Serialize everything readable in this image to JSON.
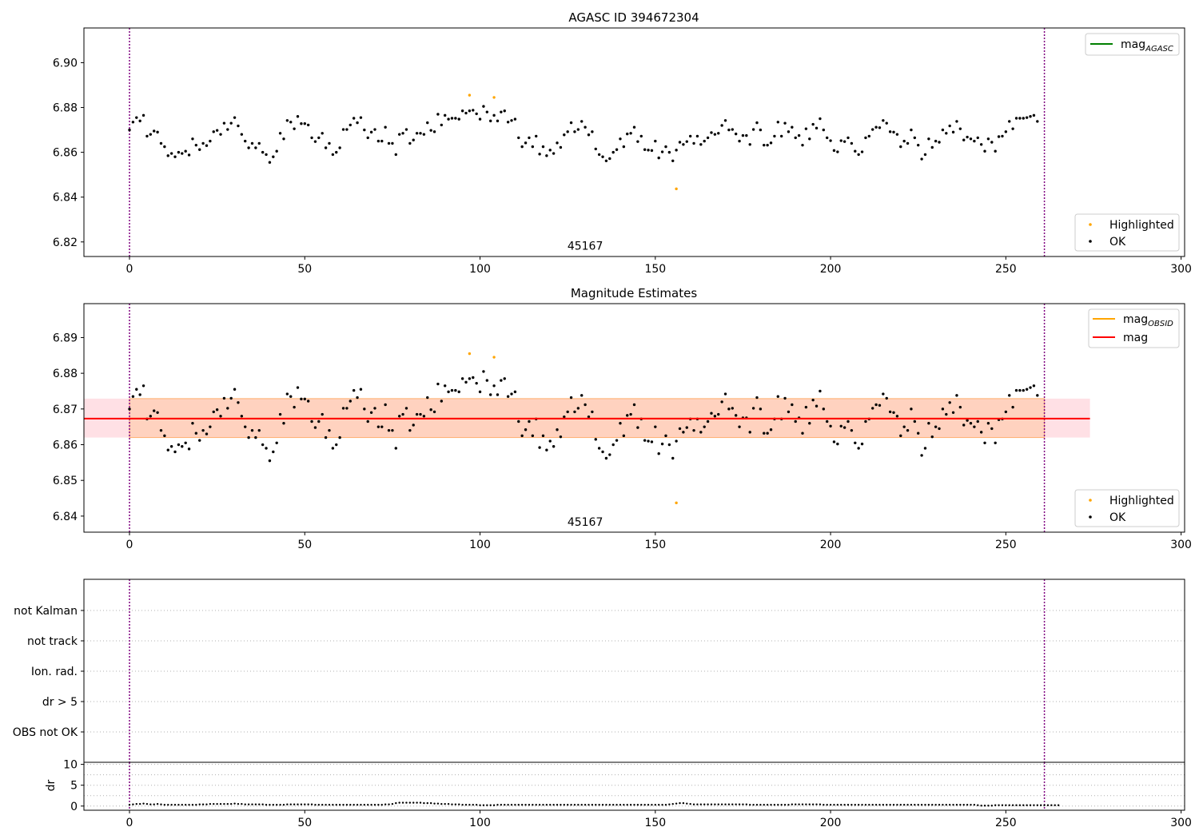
{
  "chart_data": [
    {
      "type": "scatter",
      "title": "AGASC ID 394672304",
      "xlim": [
        -13,
        301
      ],
      "ylim": [
        6.8135,
        6.9155
      ],
      "xticks": [
        0,
        50,
        100,
        150,
        200,
        250,
        300
      ],
      "yticks": [
        6.82,
        6.84,
        6.86,
        6.88,
        6.9
      ],
      "ytick_labels": [
        "6.82",
        "6.84",
        "6.86",
        "6.88",
        "6.90"
      ],
      "vlines": [
        0,
        261
      ],
      "annotation": {
        "text": "45167",
        "x": 130,
        "y": 6.8165
      },
      "legend_top": [
        {
          "label": "mag",
          "sub": "AGASC",
          "color": "#008000"
        }
      ],
      "legend_bottom": [
        {
          "label": "Highlighted",
          "color": "#FFA500"
        },
        {
          "label": "OK",
          "color": "#000000"
        }
      ],
      "series": [
        {
          "name": "OK",
          "color": "#000000",
          "source": "ok"
        },
        {
          "name": "Highlighted",
          "color": "#FFA500",
          "source": "highlighted"
        }
      ]
    },
    {
      "type": "scatter",
      "title": "Magnitude Estimates",
      "xlim": [
        -13,
        301
      ],
      "ylim": [
        6.8355,
        6.8995
      ],
      "xticks": [
        0,
        50,
        100,
        150,
        200,
        250,
        300
      ],
      "yticks": [
        6.84,
        6.85,
        6.86,
        6.87,
        6.88,
        6.89
      ],
      "ytick_labels": [
        "6.84",
        "6.85",
        "6.86",
        "6.87",
        "6.88",
        "6.89"
      ],
      "vlines": [
        0,
        261
      ],
      "annotation": {
        "text": "45167",
        "x": 130,
        "y": 6.8373
      },
      "mag_line": {
        "value": 6.8673,
        "band": [
          6.862,
          6.8729
        ],
        "x_range": [
          -13,
          274
        ]
      },
      "obsid_band": {
        "band": [
          6.862,
          6.8729
        ],
        "x_range": [
          0,
          261
        ]
      },
      "legend_top": [
        {
          "label": "mag",
          "sub": "OBSID",
          "color": "#FFA500"
        },
        {
          "label": "mag",
          "sub": "",
          "color": "#FF0000"
        }
      ],
      "legend_bottom": [
        {
          "label": "Highlighted",
          "color": "#FFA500"
        },
        {
          "label": "OK",
          "color": "#000000"
        }
      ],
      "series": [
        {
          "name": "OK",
          "color": "#000000",
          "source": "ok"
        },
        {
          "name": "Highlighted",
          "color": "#FFA500",
          "source": "highlighted"
        }
      ]
    },
    {
      "type": "scatter",
      "xlim": [
        -13,
        301
      ],
      "categories": [
        "not Kalman",
        "not track",
        "Ion. rad.",
        "dr > 5",
        "OBS not OK"
      ],
      "vlines": [
        0,
        261
      ]
    },
    {
      "type": "scatter",
      "xlim": [
        -13,
        301
      ],
      "ylim": [
        -1,
        10.5
      ],
      "xticks": [
        0,
        50,
        100,
        150,
        200,
        250,
        300
      ],
      "yticks": [
        0,
        5,
        10
      ],
      "ytick_labels": [
        "0",
        "5",
        "10"
      ],
      "ylabel": "dr",
      "vlines": [
        0,
        261
      ],
      "series": [
        {
          "name": "dr",
          "color": "#000000",
          "source": "dr"
        }
      ]
    }
  ],
  "mag_ok": [
    6.87,
    6.8735,
    6.8755,
    6.874,
    6.8765,
    6.8672,
    6.868,
    6.8695,
    6.869,
    6.864,
    6.8625,
    6.8585,
    6.8595,
    6.858,
    6.86,
    6.8595,
    6.8605,
    6.8588,
    6.866,
    6.8632,
    6.8612,
    6.864,
    6.863,
    6.865,
    6.8692,
    6.8698,
    6.868,
    6.873,
    6.8702,
    6.873,
    6.8755,
    6.8718,
    6.868,
    6.865,
    6.862,
    6.864,
    6.862,
    6.864,
    6.86,
    6.859,
    6.8555,
    6.858,
    6.8605,
    6.8685,
    6.866,
    6.8742,
    6.8735,
    6.8705,
    6.876,
    6.8728,
    6.8728,
    6.8722,
    6.8665,
    6.8648,
    6.8665,
    6.8685,
    6.862,
    6.864,
    6.859,
    6.86,
    6.862,
    6.8702,
    6.8702,
    6.8722,
    6.8752,
    6.8732,
    6.8755,
    6.87,
    6.8665,
    6.869,
    6.8702,
    6.865,
    6.865,
    6.8712,
    6.864,
    6.864,
    6.859,
    6.868,
    6.8685,
    6.8702,
    6.864,
    6.8655,
    6.8685,
    6.8685,
    6.868,
    6.8732,
    6.8698,
    6.8692,
    6.877,
    6.8722,
    6.8765,
    6.8748,
    6.8752,
    6.8752,
    6.8748,
    6.8785,
    6.8775,
    6.8785,
    6.8788,
    6.8772,
    6.8748,
    6.8805,
    6.878,
    6.874,
    6.8765,
    6.874,
    6.878,
    6.8785,
    6.8735,
    6.8742,
    6.8748,
    6.8665,
    6.8625,
    6.8642,
    6.8665,
    6.8625,
    6.8672,
    6.8592,
    6.8625,
    6.8585,
    6.861,
    6.8595,
    6.8642,
    6.8622,
    6.8678,
    6.8692,
    6.8732,
    6.8692,
    6.8702,
    6.8738,
    6.8712,
    6.8678,
    6.8692,
    6.8615,
    6.859,
    6.858,
    6.8562,
    6.8572,
    6.86,
    6.8612,
    6.866,
    6.8625,
    6.8682,
    6.8685,
    6.8712,
    6.8648,
    6.8672,
    6.8612,
    6.861,
    6.8608,
    6.865,
    6.8575,
    6.8602,
    6.8625,
    6.86,
    6.8562,
    6.861,
    6.8645,
    6.8635,
    6.8648,
    6.8672,
    6.864,
    6.8672,
    6.8635,
    6.865,
    6.8665,
    6.8688,
    6.868,
    6.8685,
    6.872,
    6.8742,
    6.87,
    6.8702,
    6.8682,
    6.865,
    6.8675,
    6.8675,
    6.8635,
    6.8702,
    6.8732,
    6.87,
    6.8632,
    6.8632,
    6.8642,
    6.8672,
    6.8735,
    6.8672,
    6.873,
    6.8692,
    6.8712,
    6.8665,
    6.8675,
    6.8632,
    6.8705,
    6.866,
    6.8725,
    6.8708,
    6.875,
    6.87,
    6.8665,
    6.8652,
    6.8608,
    6.8602,
    6.8652,
    6.8648,
    6.8665,
    6.864,
    6.8605,
    6.859,
    6.8602,
    6.8665,
    6.8672,
    6.8702,
    6.8712,
    6.871,
    6.8742,
    6.873,
    6.8692,
    6.869,
    6.868,
    6.8625,
    6.865,
    6.864,
    6.87,
    6.8665,
    6.8632,
    6.857,
    6.859,
    6.866,
    6.8622,
    6.865,
    6.8645,
    6.87,
    6.8685,
    6.8718,
    6.869,
    6.8738,
    6.8705,
    6.8655,
    6.8668,
    6.866,
    6.865,
    6.8665,
    6.8635,
    6.8605,
    6.866,
    6.8645,
    6.8605,
    6.867,
    6.8672,
    6.8692,
    6.8738,
    6.8705,
    6.8752,
    6.8752,
    6.8752,
    6.8755,
    6.876,
    6.8765,
    6.8738
  ],
  "mag_highlighted": [
    {
      "x": 97,
      "y": 6.8855
    },
    {
      "x": 104,
      "y": 6.8845
    },
    {
      "x": 156,
      "y": 6.8437
    }
  ],
  "dr": [
    0.3,
    0.4,
    0.5,
    0.5,
    0.6,
    0.5,
    0.4,
    0.4,
    0.5,
    0.4,
    0.3,
    0.3,
    0.3,
    0.3,
    0.3,
    0.3,
    0.3,
    0.3,
    0.3,
    0.3,
    0.4,
    0.4,
    0.4,
    0.5,
    0.5,
    0.5,
    0.5,
    0.5,
    0.5,
    0.5,
    0.6,
    0.5,
    0.5,
    0.4,
    0.4,
    0.4,
    0.4,
    0.4,
    0.4,
    0.3,
    0.3,
    0.3,
    0.3,
    0.3,
    0.3,
    0.4,
    0.4,
    0.4,
    0.4,
    0.4,
    0.4,
    0.4,
    0.4,
    0.3,
    0.3,
    0.3,
    0.3,
    0.3,
    0.3,
    0.3,
    0.3,
    0.3,
    0.3,
    0.3,
    0.3,
    0.3,
    0.3,
    0.3,
    0.3,
    0.3,
    0.3,
    0.3,
    0.3,
    0.4,
    0.4,
    0.5,
    0.7,
    0.8,
    0.8,
    0.8,
    0.8,
    0.8,
    0.8,
    0.8,
    0.7,
    0.7,
    0.7,
    0.6,
    0.6,
    0.5,
    0.5,
    0.5,
    0.4,
    0.4,
    0.4,
    0.3,
    0.3,
    0.3,
    0.3,
    0.3,
    0.2,
    0.2,
    0.2,
    0.2,
    0.2,
    0.3,
    0.3,
    0.3,
    0.3,
    0.3,
    0.3,
    0.3,
    0.3,
    0.3,
    0.3,
    0.3,
    0.3,
    0.3,
    0.3,
    0.3,
    0.3,
    0.3,
    0.3,
    0.3,
    0.3,
    0.3,
    0.3,
    0.3,
    0.3,
    0.3,
    0.3,
    0.3,
    0.3,
    0.3,
    0.3,
    0.3,
    0.3,
    0.3,
    0.3,
    0.3,
    0.3,
    0.3,
    0.3,
    0.3,
    0.3,
    0.3,
    0.3,
    0.3,
    0.3,
    0.3,
    0.3,
    0.3,
    0.3,
    0.3,
    0.4,
    0.5,
    0.6,
    0.7,
    0.7,
    0.6,
    0.5,
    0.4,
    0.4,
    0.4,
    0.4,
    0.4,
    0.4,
    0.4,
    0.4,
    0.4,
    0.4,
    0.4,
    0.4,
    0.4,
    0.4,
    0.4,
    0.4,
    0.3,
    0.3,
    0.3,
    0.3,
    0.3,
    0.3,
    0.3,
    0.3,
    0.3,
    0.3,
    0.3,
    0.3,
    0.4,
    0.4,
    0.4,
    0.4,
    0.4,
    0.4,
    0.4,
    0.4,
    0.4,
    0.3,
    0.3,
    0.3,
    0.3,
    0.3,
    0.3,
    0.3,
    0.3,
    0.3,
    0.3,
    0.3,
    0.3,
    0.3,
    0.3,
    0.3,
    0.3,
    0.3,
    0.3,
    0.3,
    0.3,
    0.3,
    0.3,
    0.3,
    0.3,
    0.3,
    0.3,
    0.3,
    0.3,
    0.3,
    0.3,
    0.3,
    0.3,
    0.3,
    0.3,
    0.3,
    0.3,
    0.3,
    0.3,
    0.3,
    0.3,
    0.3,
    0.3,
    0.3,
    0.3,
    0.2,
    0.1,
    0.1,
    0.1,
    0.1,
    0.2,
    0.2,
    0.2,
    0.2,
    0.2,
    0.2,
    0.2,
    0.2,
    0.2,
    0.2,
    0.2,
    0.2,
    0.2,
    0.2,
    0.2,
    0.2,
    0.2,
    0.2,
    0.2
  ]
}
